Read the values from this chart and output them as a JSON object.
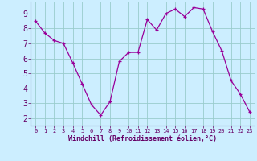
{
  "x": [
    0,
    1,
    2,
    3,
    4,
    5,
    6,
    7,
    8,
    9,
    10,
    11,
    12,
    13,
    14,
    15,
    16,
    17,
    18,
    19,
    20,
    21,
    22,
    23
  ],
  "y": [
    8.5,
    7.7,
    7.2,
    7.0,
    5.7,
    4.3,
    2.9,
    2.2,
    3.1,
    5.8,
    6.4,
    6.4,
    8.6,
    7.9,
    9.0,
    9.3,
    8.8,
    9.4,
    9.3,
    7.8,
    6.5,
    4.5,
    3.6,
    2.4
  ],
  "line_color": "#990099",
  "marker_color": "#990099",
  "bg_color": "#cceeff",
  "grid_color": "#99cccc",
  "xlabel": "Windchill (Refroidissement éolien,°C)",
  "xlim": [
    -0.5,
    23.5
  ],
  "ylim": [
    1.5,
    9.8
  ],
  "yticks": [
    2,
    3,
    4,
    5,
    6,
    7,
    8,
    9
  ],
  "xticks": [
    0,
    1,
    2,
    3,
    4,
    5,
    6,
    7,
    8,
    9,
    10,
    11,
    12,
    13,
    14,
    15,
    16,
    17,
    18,
    19,
    20,
    21,
    22,
    23
  ],
  "axis_color": "#660066",
  "tick_color": "#660066",
  "label_color": "#660066",
  "spine_color": "#666699"
}
